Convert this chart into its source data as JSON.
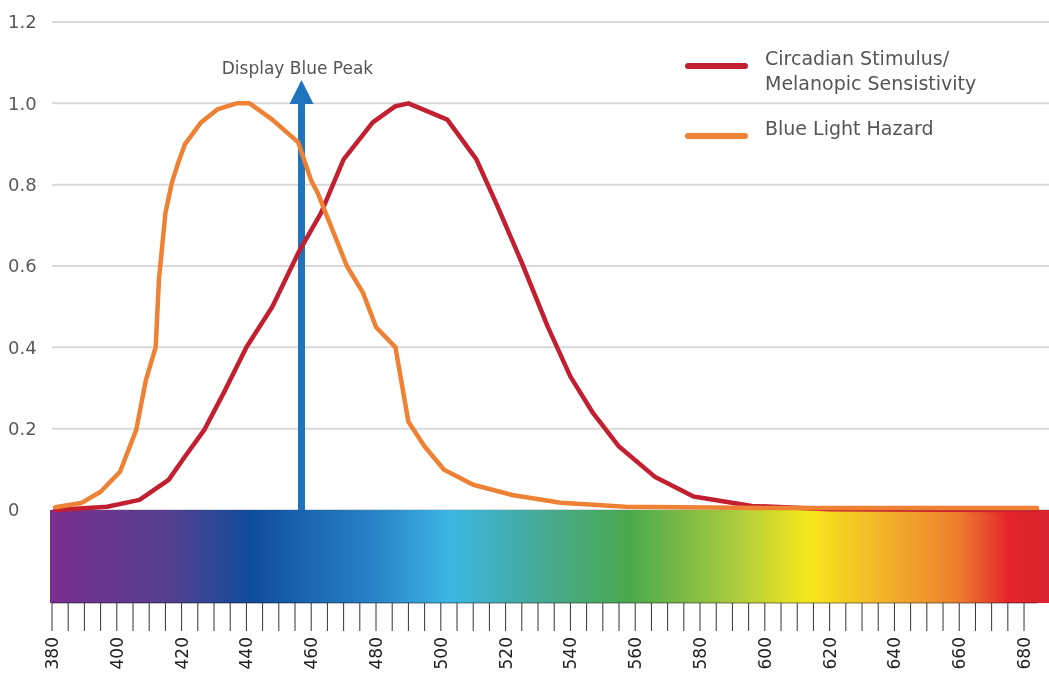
{
  "chart_data": {
    "type": "line",
    "series": [
      {
        "name": "Circadian Stimulus/ Melanopic Sensistivity",
        "color": "#c21f30",
        "x": [
          381,
          397,
          407,
          416,
          421,
          427,
          433,
          440,
          448,
          456,
          463,
          470,
          479,
          486,
          490,
          502,
          511,
          517,
          525,
          533,
          540,
          547,
          555,
          566,
          578,
          596,
          620,
          684
        ],
        "values": [
          0,
          0.008,
          0.025,
          0.074,
          0.131,
          0.197,
          0.288,
          0.4,
          0.5,
          0.632,
          0.73,
          0.862,
          0.953,
          0.993,
          1.0,
          0.96,
          0.862,
          0.756,
          0.608,
          0.451,
          0.328,
          0.238,
          0.156,
          0.082,
          0.033,
          0.01,
          0.002,
          0
        ]
      },
      {
        "name": "Blue Light Hazard",
        "color": "#ee8133",
        "x": [
          381,
          389,
          395,
          401,
          406,
          409,
          412,
          413,
          415,
          417,
          419,
          421,
          426,
          431,
          437,
          441,
          448,
          456,
          460,
          462,
          466,
          471,
          476,
          480,
          486,
          490,
          495,
          501,
          510,
          522,
          537,
          557,
          600,
          684
        ],
        "values": [
          0.007,
          0.017,
          0.045,
          0.094,
          0.197,
          0.32,
          0.4,
          0.566,
          0.73,
          0.805,
          0.855,
          0.899,
          0.953,
          0.985,
          1.0,
          1.0,
          0.96,
          0.904,
          0.81,
          0.78,
          0.7,
          0.6,
          0.534,
          0.45,
          0.4,
          0.217,
          0.156,
          0.099,
          0.062,
          0.037,
          0.018,
          0.008,
          0.005,
          0.005
        ]
      }
    ],
    "xlim": [
      380,
      684
    ],
    "xticks": [
      380,
      400,
      420,
      440,
      460,
      480,
      500,
      520,
      540,
      560,
      580,
      600,
      620,
      640,
      660,
      680
    ],
    "ylim": [
      0,
      1.2
    ],
    "yticks": [
      0,
      0.2,
      0.4,
      0.6,
      0.8,
      {
        "value": 1,
        "label": "1.0"
      },
      1.2
    ],
    "grid": "y",
    "legend": "top right",
    "ref_lines": [
      {
        "axis": "x",
        "value": 457,
        "label": "Display Blue Peak",
        "color": "#1f74bd"
      }
    ]
  }
}
